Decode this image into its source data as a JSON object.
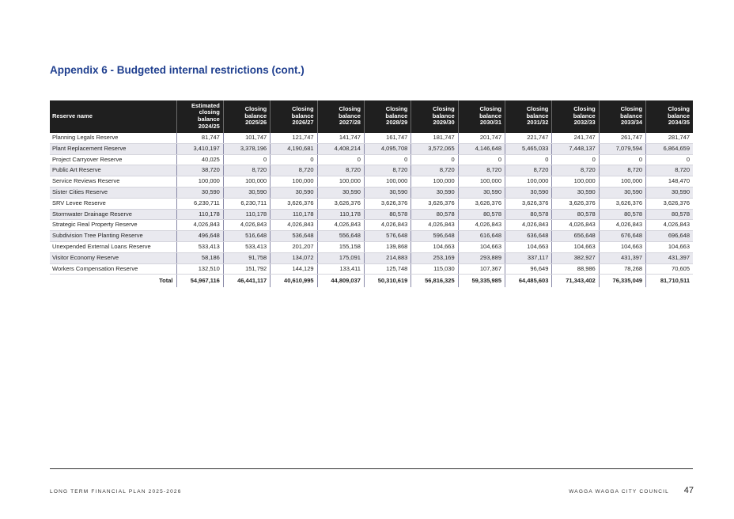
{
  "title": "Appendix 6 - Budgeted internal restrictions (cont.)",
  "table": {
    "headers": [
      "Reserve name",
      "Estimated closing balance 2024/25",
      "Closing balance 2025/26",
      "Closing balance 2026/27",
      "Closing balance 2027/28",
      "Closing balance 2028/29",
      "Closing balance 2029/30",
      "Closing balance 2030/31",
      "Closing balance 2031/32",
      "Closing balance 2032/33",
      "Closing balance 2033/34",
      "Closing balance 2034/35"
    ],
    "rows": [
      [
        "Planning Legals Reserve",
        "81,747",
        "101,747",
        "121,747",
        "141,747",
        "161,747",
        "181,747",
        "201,747",
        "221,747",
        "241,747",
        "261,747",
        "281,747"
      ],
      [
        "Plant Replacement Reserve",
        "3,410,197",
        "3,378,196",
        "4,190,681",
        "4,408,214",
        "4,095,708",
        "3,572,065",
        "4,146,648",
        "5,465,033",
        "7,448,137",
        "7,079,594",
        "6,864,659"
      ],
      [
        "Project Carryover Reserve",
        "40,025",
        "0",
        "0",
        "0",
        "0",
        "0",
        "0",
        "0",
        "0",
        "0",
        "0"
      ],
      [
        "Public Art Reserve",
        "38,720",
        "8,720",
        "8,720",
        "8,720",
        "8,720",
        "8,720",
        "8,720",
        "8,720",
        "8,720",
        "8,720",
        "8,720"
      ],
      [
        "Service Reviews Reserve",
        "100,000",
        "100,000",
        "100,000",
        "100,000",
        "100,000",
        "100,000",
        "100,000",
        "100,000",
        "100,000",
        "100,000",
        "148,470"
      ],
      [
        "Sister Cities Reserve",
        "30,590",
        "30,590",
        "30,590",
        "30,590",
        "30,590",
        "30,590",
        "30,590",
        "30,590",
        "30,590",
        "30,590",
        "30,590"
      ],
      [
        "SRV Levee Reserve",
        "6,230,711",
        "6,230,711",
        "3,626,376",
        "3,626,376",
        "3,626,376",
        "3,626,376",
        "3,626,376",
        "3,626,376",
        "3,626,376",
        "3,626,376",
        "3,626,376"
      ],
      [
        "Stormwater Drainage Reserve",
        "110,178",
        "110,178",
        "110,178",
        "110,178",
        "80,578",
        "80,578",
        "80,578",
        "80,578",
        "80,578",
        "80,578",
        "80,578"
      ],
      [
        "Strategic Real Property Reserve",
        "4,026,843",
        "4,026,843",
        "4,026,843",
        "4,026,843",
        "4,026,843",
        "4,026,843",
        "4,026,843",
        "4,026,843",
        "4,026,843",
        "4,026,843",
        "4,026,843"
      ],
      [
        "Subdivision Tree Planting Reserve",
        "496,648",
        "516,648",
        "536,648",
        "556,648",
        "576,648",
        "596,648",
        "616,648",
        "636,648",
        "656,648",
        "676,648",
        "696,648"
      ],
      [
        "Unexpended External Loans Reserve",
        "533,413",
        "533,413",
        "201,207",
        "155,158",
        "139,868",
        "104,663",
        "104,663",
        "104,663",
        "104,663",
        "104,663",
        "104,663"
      ],
      [
        "Visitor Economy Reserve",
        "58,186",
        "91,758",
        "134,072",
        "175,091",
        "214,883",
        "253,169",
        "293,889",
        "337,117",
        "382,927",
        "431,397",
        "431,397"
      ],
      [
        "Workers Compensation Reserve",
        "132,510",
        "151,792",
        "144,129",
        "133,411",
        "125,748",
        "115,030",
        "107,367",
        "96,649",
        "88,986",
        "78,268",
        "70,605"
      ]
    ],
    "total_label": "Total",
    "totals": [
      "54,967,116",
      "46,441,117",
      "40,610,995",
      "44,809,037",
      "50,310,619",
      "56,816,325",
      "59,335,985",
      "64,485,603",
      "71,343,402",
      "76,335,049",
      "81,710,511"
    ]
  },
  "footer": {
    "left": "LONG TERM FINANCIAL PLAN 2025-2026",
    "right": "WAGGA WAGGA CITY COUNCIL",
    "page_number": "47"
  },
  "colors": {
    "title": "#1f3f8f",
    "header_bg": "#1f1f1f",
    "alt_row": "#e9e9ef"
  }
}
